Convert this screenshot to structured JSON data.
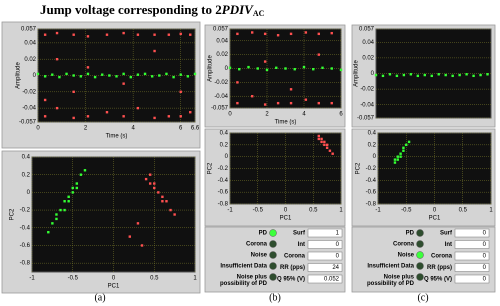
{
  "title_parts": [
    "Jump voltage corresponding to 2",
    "PDIV",
    "AC"
  ],
  "panel_labels": [
    "(a)",
    "(b)",
    "(c)"
  ],
  "chart_data": [
    {
      "type": "scatter",
      "xlabel": "Time (s)",
      "ylabel": "Amplitude",
      "grid": true,
      "background": "#101010",
      "xlim": [
        0,
        6.6
      ],
      "ylim": [
        -0.057,
        0.057
      ],
      "xticks": [
        0,
        2,
        4,
        6,
        6.6
      ],
      "yticks": [
        0.057,
        0.04,
        0.02,
        0,
        -0.02,
        -0.04,
        -0.057
      ],
      "series": [
        {
          "color": "#33ff33",
          "x": [
            0,
            0.3,
            0.6,
            0.9,
            1.2,
            1.5,
            1.8,
            2.1,
            2.4,
            2.7,
            3,
            3.3,
            3.6,
            3.9,
            4.2,
            4.5,
            4.8,
            5.1,
            5.4,
            5.7,
            6,
            6.3,
            6.6
          ],
          "values": [
            0.002,
            -0.001,
            0.001,
            -0.002,
            0.002,
            0,
            -0.001,
            0.002,
            -0.002,
            0.001,
            0,
            -0.001,
            0.002,
            -0.002,
            0.001,
            0.002,
            -0.001,
            0,
            0.002,
            -0.002,
            0.001,
            -0.001,
            0.002
          ]
        },
        {
          "color": "#ff5050",
          "x": [
            0.3,
            0.3,
            0.3,
            0.8,
            0.8,
            0.8,
            1.5,
            1.5,
            1.5,
            2.1,
            2.1,
            2.1,
            2.9,
            2.9,
            3.6,
            3.6,
            3.6,
            4.2,
            4.2,
            4.9,
            4.9,
            4.9,
            5.5,
            5.5,
            6,
            6,
            6,
            6.4,
            6.4
          ],
          "values": [
            0.05,
            -0.03,
            -0.05,
            0.052,
            0.02,
            -0.04,
            0.05,
            -0.02,
            -0.052,
            0.048,
            0.01,
            -0.05,
            0.05,
            -0.045,
            0.052,
            -0.01,
            -0.05,
            0.05,
            -0.04,
            0.05,
            0.03,
            -0.052,
            0.05,
            -0.05,
            0.051,
            -0.02,
            -0.05,
            0.05,
            -0.045
          ]
        }
      ]
    },
    {
      "type": "scatter",
      "xlabel": "PC1",
      "ylabel": "PC2",
      "grid": true,
      "background": "#101010",
      "xlim": [
        -1,
        1
      ],
      "ylim": [
        -0.9,
        0.4
      ],
      "xticks": [
        -1,
        -0.5,
        0,
        0.5,
        1
      ],
      "yticks": [
        0.4,
        0.2,
        0,
        -0.2,
        -0.4,
        -0.6,
        -0.8
      ],
      "series": [
        {
          "color": "#33ff33",
          "x": [
            -0.75,
            -0.7,
            -0.65,
            -0.6,
            -0.55,
            -0.5,
            -0.45,
            -0.4,
            -0.6,
            -0.5,
            -0.7,
            -0.45,
            -0.55,
            -0.35,
            -0.8
          ],
          "values": [
            -0.35,
            -0.25,
            -0.2,
            -0.1,
            -0.05,
            0.05,
            0.1,
            0.2,
            -0.2,
            0,
            -0.3,
            0.05,
            -0.1,
            0.25,
            -0.45
          ]
        },
        {
          "color": "#ff5050",
          "x": [
            0.4,
            0.45,
            0.5,
            0.55,
            0.6,
            0.65,
            0.7,
            0.5,
            0.6,
            0.75,
            0.45,
            0.3,
            0.2,
            0.35
          ],
          "values": [
            0.15,
            0.1,
            0.05,
            0,
            -0.05,
            -0.1,
            -0.2,
            0.1,
            -0.1,
            -0.25,
            0.2,
            -0.35,
            -0.5,
            -0.6
          ]
        }
      ]
    },
    {
      "type": "scatter",
      "xlabel": "Time (s)",
      "ylabel": "Amplitude",
      "grid": true,
      "background": "#101010",
      "xlim": [
        0,
        6
      ],
      "ylim": [
        -0.057,
        0.057
      ],
      "xticks": [
        0,
        2,
        4,
        6
      ],
      "yticks": [
        0.057,
        0.04,
        0.02,
        0,
        -0.02,
        -0.04,
        -0.057
      ],
      "series": [
        {
          "color": "#33ff33",
          "x": [
            0,
            0.5,
            1,
            1.5,
            2,
            2.5,
            3,
            3.5,
            4,
            4.5,
            5,
            5.5,
            6
          ],
          "values": [
            0.001,
            -0.001,
            0.002,
            0,
            -0.002,
            0.001,
            0,
            -0.001,
            0.002,
            -0.001,
            0.001,
            0,
            -0.002
          ]
        },
        {
          "color": "#ff5050",
          "x": [
            0.4,
            0.4,
            0.4,
            1.2,
            1.2,
            1.9,
            1.9,
            1.9,
            2.6,
            2.6,
            3.3,
            3.3,
            3.3,
            4.1,
            4.1,
            4.8,
            4.8,
            4.8,
            5.5,
            5.5
          ],
          "values": [
            0.05,
            -0.02,
            -0.05,
            0.052,
            -0.04,
            0.05,
            0.01,
            -0.052,
            0.048,
            -0.05,
            0.05,
            -0.03,
            -0.05,
            0.052,
            -0.045,
            0.05,
            0.02,
            -0.05,
            0.051,
            -0.05
          ]
        }
      ]
    },
    {
      "type": "scatter",
      "xlabel": "PC1",
      "ylabel": "PC2",
      "grid": true,
      "background": "#101010",
      "xlim": [
        -1,
        1
      ],
      "ylim": [
        -0.8,
        0.4
      ],
      "xticks": [
        -1,
        -0.5,
        0,
        0.5,
        1
      ],
      "yticks": [
        0.4,
        0.2,
        0,
        -0.2,
        -0.4,
        -0.6,
        -0.8
      ],
      "series": [
        {
          "color": "#ff5050",
          "x": [
            0.6,
            0.65,
            0.7,
            0.75,
            0.8,
            0.7,
            0.65,
            0.75,
            0.85,
            0.6
          ],
          "values": [
            0.3,
            0.25,
            0.2,
            0.15,
            0.1,
            0.25,
            0.3,
            0.2,
            0.05,
            0.35
          ]
        }
      ]
    },
    {
      "type": "scatter",
      "ylabel": "Amplitude",
      "grid": true,
      "background": "#101010",
      "xlim": [
        0,
        6.6
      ],
      "ylim": [
        -0.057,
        0.057
      ],
      "yticks": [
        0.057,
        0.04,
        0.02,
        0,
        -0.02,
        -0.04,
        -0.057
      ],
      "series": [
        {
          "color": "#33ff33",
          "x": [
            0,
            0.4,
            0.8,
            1.2,
            1.6,
            2,
            2.4,
            2.8,
            3.2,
            3.6,
            4,
            4.4,
            4.8,
            5.2,
            5.6,
            6,
            6.4
          ],
          "values": [
            -0.002,
            -0.003,
            -0.001,
            -0.003,
            -0.002,
            -0.001,
            -0.003,
            -0.002,
            -0.003,
            -0.001,
            -0.002,
            -0.003,
            -0.002,
            -0.001,
            -0.003,
            -0.002,
            -0.001
          ]
        }
      ]
    },
    {
      "type": "scatter",
      "xlabel": "PC1",
      "ylabel": "PC2",
      "grid": true,
      "background": "#101010",
      "xlim": [
        -1,
        1
      ],
      "ylim": [
        -0.8,
        0.4
      ],
      "xticks": [
        -1,
        -0.5,
        0,
        0.5,
        1
      ],
      "yticks": [
        0.4,
        0.2,
        0,
        -0.2,
        -0.4,
        -0.6,
        -0.8
      ],
      "series": [
        {
          "color": "#33ff33",
          "x": [
            -0.7,
            -0.65,
            -0.6,
            -0.55,
            -0.5,
            -0.6,
            -0.65,
            -0.55,
            -0.7,
            -0.45
          ],
          "values": [
            -0.05,
            0,
            0.05,
            0.1,
            0.2,
            0,
            -0.05,
            0.15,
            -0.1,
            0.25
          ]
        }
      ]
    }
  ],
  "indicator_panels": [
    {
      "leds": [
        {
          "lines": [
            "PD"
          ],
          "lit": true
        },
        {
          "lines": [
            "Corona"
          ],
          "lit": false
        },
        {
          "lines": [
            "Noise"
          ],
          "lit": false
        },
        {
          "lines": [
            "Insufficient Data"
          ],
          "lit": false
        },
        {
          "lines": [
            "Noise plus",
            "possibility of PD"
          ],
          "lit": false
        }
      ],
      "fields": [
        {
          "label": "Surf",
          "value": 1
        },
        {
          "label": "Int",
          "value": 0
        },
        {
          "label": "Corona",
          "value": 0
        },
        {
          "label": "RR (pps)",
          "value": 24
        },
        {
          "label": "Q 95% (V)",
          "value": 0.052
        }
      ]
    },
    {
      "leds": [
        {
          "lines": [
            "PD"
          ],
          "lit": false
        },
        {
          "lines": [
            "Corona"
          ],
          "lit": false
        },
        {
          "lines": [
            "Noise"
          ],
          "lit": true
        },
        {
          "lines": [
            "Insufficient Data"
          ],
          "lit": false
        },
        {
          "lines": [
            "Noise plus",
            "possibility of PD"
          ],
          "lit": false
        }
      ],
      "fields": [
        {
          "label": "Surf",
          "value": 0
        },
        {
          "label": "Int",
          "value": 0
        },
        {
          "label": "Corona",
          "value": 0
        },
        {
          "label": "RR (pps)",
          "value": 0
        },
        {
          "label": "Q 95% (V)",
          "value": 0
        }
      ]
    }
  ]
}
